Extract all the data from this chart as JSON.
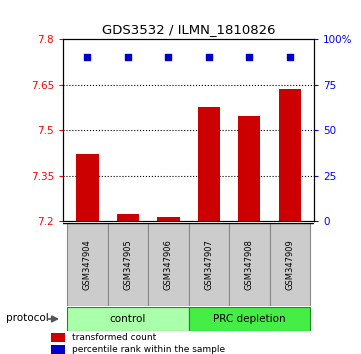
{
  "title": "GDS3532 / ILMN_1810826",
  "samples": [
    "GSM347904",
    "GSM347905",
    "GSM347906",
    "GSM347907",
    "GSM347908",
    "GSM347909"
  ],
  "bar_values": [
    7.42,
    7.225,
    7.215,
    7.575,
    7.545,
    7.635
  ],
  "percentile_values": [
    90,
    90,
    90,
    90,
    90,
    90
  ],
  "ylim_left": [
    7.2,
    7.8
  ],
  "ylim_right": [
    0,
    100
  ],
  "yticks_left": [
    7.2,
    7.35,
    7.5,
    7.65,
    7.8
  ],
  "yticks_right": [
    0,
    25,
    50,
    75,
    100
  ],
  "ytick_labels_left": [
    "7.2",
    "7.35",
    "7.5",
    "7.65",
    "7.8"
  ],
  "ytick_labels_right": [
    "0",
    "25",
    "50",
    "75",
    "100%"
  ],
  "bar_color": "#CC0000",
  "scatter_color": "#0000CC",
  "bar_bottom": 7.2,
  "grid_lines": [
    7.35,
    7.5,
    7.65
  ],
  "group_labels": [
    "control",
    "PRC depletion"
  ],
  "group_colors_ctrl": "#AAFFAA",
  "group_colors_prc": "#44EE44",
  "group_border_color": "#228822",
  "sample_bg_color": "#CCCCCC",
  "sample_border_color": "#888888",
  "legend_red_label": "transformed count",
  "legend_blue_label": "percentile rank within the sample",
  "protocol_label": "protocol",
  "figsize": [
    3.61,
    3.54
  ],
  "dpi": 100
}
